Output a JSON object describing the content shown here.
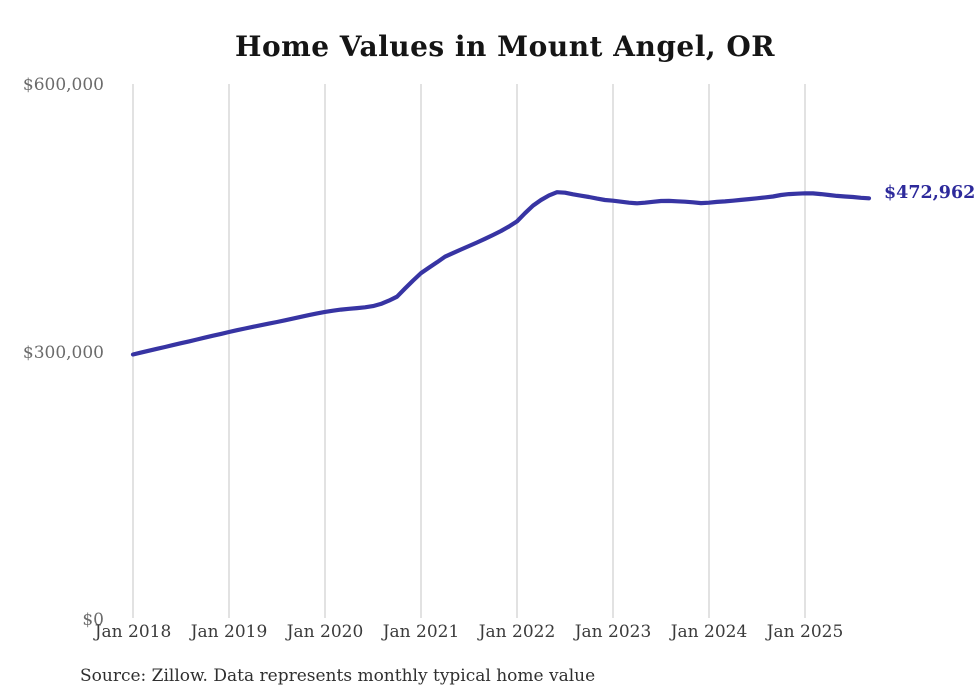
{
  "chart": {
    "title": "Home Values in Mount Angel, OR",
    "end_label": "$472,962",
    "source_note": "Source: Zillow. Data represents monthly typical home value",
    "colors": {
      "line": "#3734a3",
      "end_label": "#2d2a9b",
      "gridline": "#c6c6c6",
      "title": "#151515",
      "y_tick": "#6b6b6b",
      "x_tick": "#3b3b3b",
      "source": "#2f2f2f",
      "background": "#ffffff"
    }
  },
  "chart_data": {
    "type": "line",
    "title": "Home Values in Mount Angel, OR",
    "series_name": "Monthly typical home value",
    "latest_value": 472962,
    "ylim": [
      0,
      600000
    ],
    "grid": "vertical-only",
    "legend": "none",
    "y_ticks": [
      {
        "label": "$0",
        "value": 0
      },
      {
        "label": "$300,000",
        "value": 300000
      },
      {
        "label": "$600,000",
        "value": 600000
      }
    ],
    "x_tick_labels": [
      "Jan 2018",
      "Jan 2019",
      "Jan 2020",
      "Jan 2021",
      "Jan 2022",
      "Jan 2023",
      "Jan 2024",
      "Jan 2025"
    ],
    "x": [
      "2018-01",
      "2018-02",
      "2018-03",
      "2018-04",
      "2018-05",
      "2018-06",
      "2018-07",
      "2018-08",
      "2018-09",
      "2018-10",
      "2018-11",
      "2018-12",
      "2019-01",
      "2019-02",
      "2019-03",
      "2019-04",
      "2019-05",
      "2019-06",
      "2019-07",
      "2019-08",
      "2019-09",
      "2019-10",
      "2019-11",
      "2019-12",
      "2020-01",
      "2020-02",
      "2020-03",
      "2020-04",
      "2020-05",
      "2020-06",
      "2020-07",
      "2020-08",
      "2020-09",
      "2020-10",
      "2020-11",
      "2020-12",
      "2021-01",
      "2021-02",
      "2021-03",
      "2021-04",
      "2021-05",
      "2021-06",
      "2021-07",
      "2021-08",
      "2021-09",
      "2021-10",
      "2021-11",
      "2021-12",
      "2022-01",
      "2022-02",
      "2022-03",
      "2022-04",
      "2022-05",
      "2022-06",
      "2022-07",
      "2022-08",
      "2022-09",
      "2022-10",
      "2022-11",
      "2022-12",
      "2023-01",
      "2023-02",
      "2023-03",
      "2023-04",
      "2023-05",
      "2023-06",
      "2023-07",
      "2023-08",
      "2023-09",
      "2023-10",
      "2023-11",
      "2023-12",
      "2024-01",
      "2024-02",
      "2024-03",
      "2024-04",
      "2024-05",
      "2024-06",
      "2024-07",
      "2024-08",
      "2024-09",
      "2024-10",
      "2024-11",
      "2024-12",
      "2025-01",
      "2025-02",
      "2025-03",
      "2025-04",
      "2025-05",
      "2025-06",
      "2025-07",
      "2025-08",
      "2025-09"
    ],
    "values": [
      297800,
      299900,
      302000,
      304100,
      306200,
      308300,
      310400,
      312500,
      314600,
      316700,
      318800,
      320900,
      323000,
      325000,
      326900,
      328800,
      330600,
      332400,
      334200,
      336100,
      338000,
      340000,
      342000,
      343800,
      345500,
      346900,
      348100,
      349000,
      349800,
      350700,
      352000,
      354500,
      358200,
      362600,
      371800,
      380600,
      389000,
      395200,
      401200,
      407400,
      411500,
      415500,
      419400,
      423400,
      427500,
      431800,
      436300,
      441300,
      447000,
      456200,
      464800,
      471000,
      476200,
      479800,
      479200,
      477400,
      475800,
      474400,
      472600,
      471000,
      470200,
      469100,
      468000,
      467300,
      468000,
      469000,
      469900,
      470000,
      469600,
      469100,
      468500,
      467600,
      468000,
      468900,
      469500,
      470200,
      471100,
      472000,
      472900,
      473900,
      475000,
      476600,
      477600,
      478100,
      478500,
      478400,
      477600,
      476600,
      475600,
      475000,
      474400,
      473500,
      472962
    ]
  }
}
